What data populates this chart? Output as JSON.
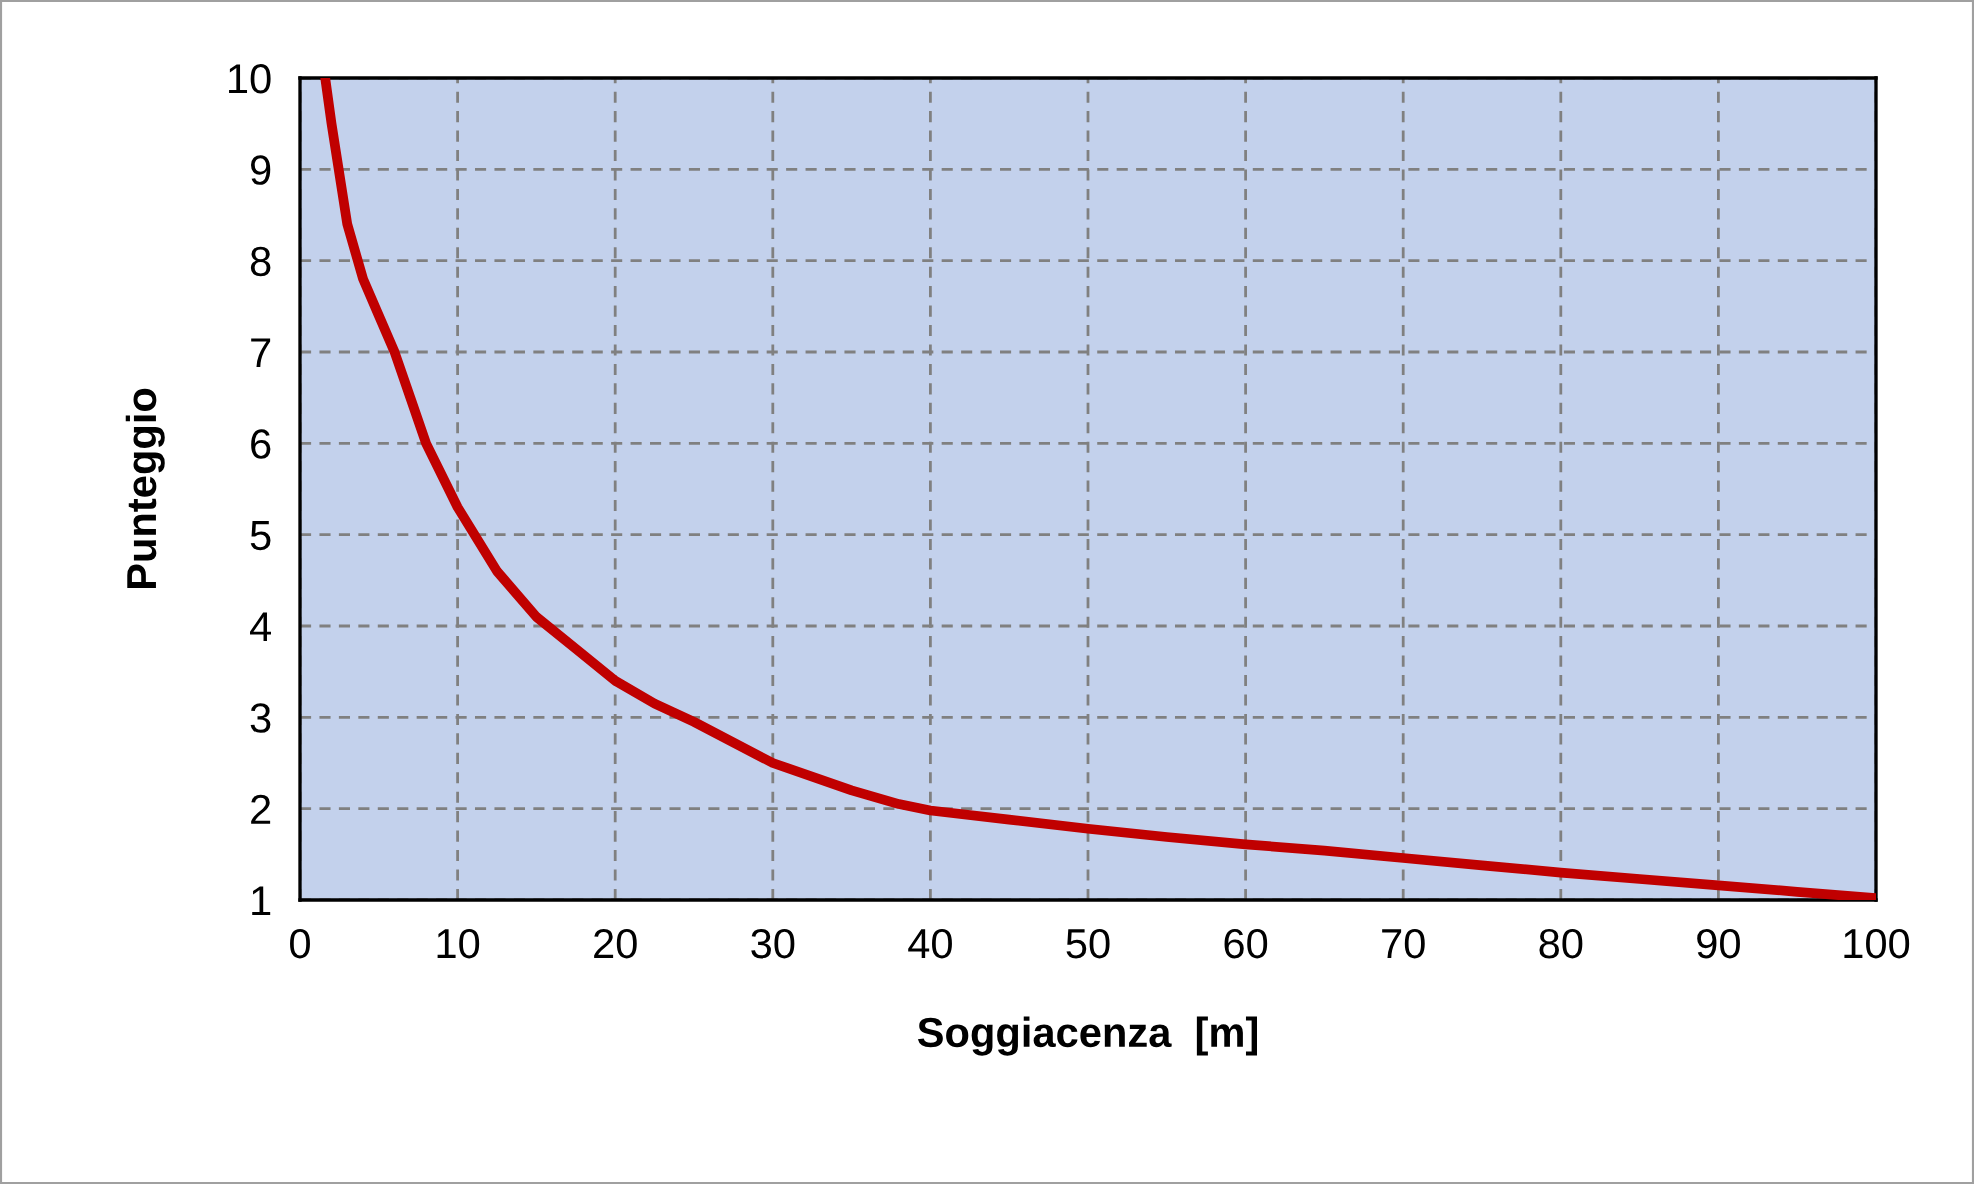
{
  "chart_data": {
    "type": "line",
    "xlabel": "Soggiacenza  [m]",
    "ylabel": "Punteggio",
    "x": [
      1.6,
      2,
      3,
      4,
      5,
      6,
      7,
      8,
      10,
      12.5,
      15,
      17.5,
      20,
      22.5,
      25,
      30,
      35,
      38,
      40,
      45,
      50,
      55,
      60,
      65,
      70,
      75,
      80,
      85,
      90,
      95,
      100
    ],
    "series": [
      {
        "color": "#c00000",
        "values": [
          10,
          9.5,
          8.4,
          7.8,
          7.4,
          7.0,
          6.5,
          6.0,
          5.3,
          4.6,
          4.1,
          3.75,
          3.4,
          3.15,
          2.95,
          2.5,
          2.2,
          2.05,
          1.98,
          1.88,
          1.78,
          1.69,
          1.61,
          1.54,
          1.46,
          1.38,
          1.3,
          1.23,
          1.16,
          1.09,
          1.02
        ]
      }
    ],
    "xlim": [
      0,
      100
    ],
    "xticks": [
      0,
      10,
      20,
      30,
      40,
      50,
      60,
      70,
      80,
      90,
      100
    ],
    "ylim": [
      1,
      10
    ],
    "yticks": [
      1,
      2,
      3,
      4,
      5,
      6,
      7,
      8,
      9,
      10
    ],
    "grid": true,
    "line_style": "solid",
    "marker": "none"
  }
}
